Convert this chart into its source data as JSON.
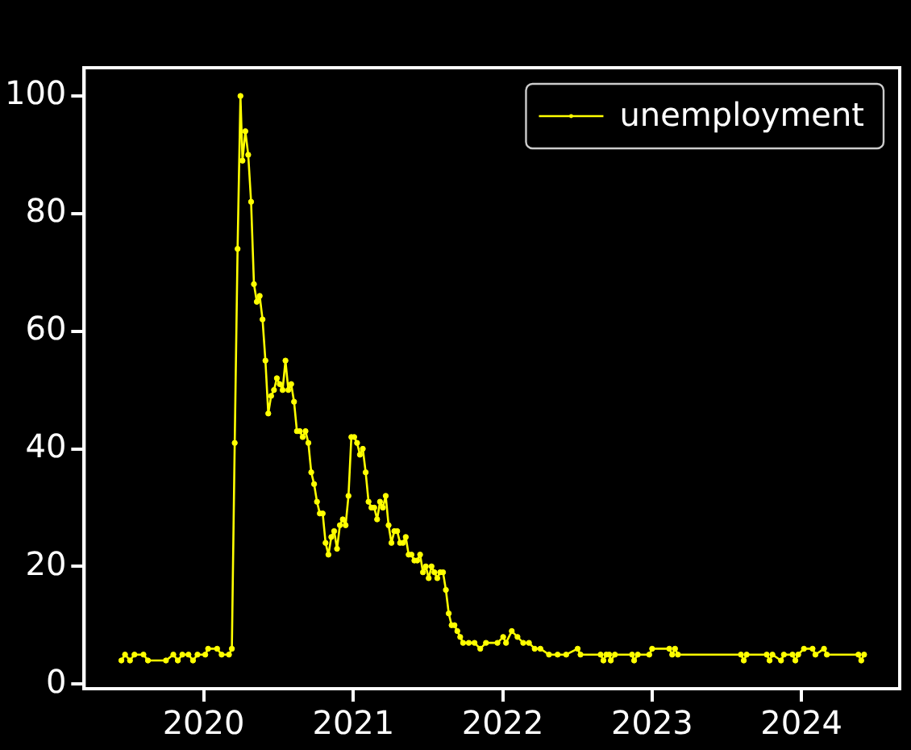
{
  "chart_data": {
    "type": "line",
    "legend": "top right",
    "marker": "circle",
    "line_style": "solid",
    "grid": false,
    "xlim": [
      "2019-03-15",
      "2024-08-28"
    ],
    "xticks": [
      "2020",
      "2021",
      "2022",
      "2023",
      "2024"
    ],
    "ylim": [
      -0.8,
      104.8
    ],
    "yticks": [
      0,
      20,
      40,
      60,
      80,
      100
    ],
    "x": [
      "2019-06-14",
      "2019-06-23",
      "2019-07-05",
      "2019-07-16",
      "2019-08-07",
      "2019-08-18",
      "2019-10-01",
      "2019-10-19",
      "2019-10-30",
      "2019-11-10",
      "2019-11-25",
      "2019-12-06",
      "2019-12-17",
      "2020-01-05",
      "2020-01-12",
      "2020-02-03",
      "2020-02-14",
      "2020-03-03",
      "2020-03-10",
      "2020-03-17",
      "2020-03-24",
      "2020-03-31",
      "2020-04-05",
      "2020-04-12",
      "2020-04-19",
      "2020-04-26",
      "2020-05-03",
      "2020-05-10",
      "2020-05-17",
      "2020-05-24",
      "2020-05-31",
      "2020-06-07",
      "2020-06-14",
      "2020-06-21",
      "2020-06-28",
      "2020-07-05",
      "2020-07-12",
      "2020-07-19",
      "2020-07-26",
      "2020-08-02",
      "2020-08-09",
      "2020-08-16",
      "2020-08-23",
      "2020-08-30",
      "2020-09-06",
      "2020-09-13",
      "2020-09-20",
      "2020-09-27",
      "2020-10-04",
      "2020-10-11",
      "2020-10-18",
      "2020-10-25",
      "2020-11-01",
      "2020-11-08",
      "2020-11-15",
      "2020-11-22",
      "2020-11-29",
      "2020-12-06",
      "2020-12-13",
      "2020-12-20",
      "2020-12-27",
      "2021-01-03",
      "2021-01-10",
      "2021-01-17",
      "2021-01-24",
      "2021-01-31",
      "2021-02-07",
      "2021-02-14",
      "2021-02-21",
      "2021-02-28",
      "2021-03-07",
      "2021-03-14",
      "2021-03-21",
      "2021-03-28",
      "2021-04-04",
      "2021-04-11",
      "2021-04-18",
      "2021-04-25",
      "2021-05-02",
      "2021-05-09",
      "2021-05-16",
      "2021-05-23",
      "2021-05-30",
      "2021-06-06",
      "2021-06-13",
      "2021-06-20",
      "2021-06-27",
      "2021-07-04",
      "2021-07-11",
      "2021-07-18",
      "2021-07-25",
      "2021-08-01",
      "2021-08-08",
      "2021-08-15",
      "2021-08-22",
      "2021-08-29",
      "2021-09-05",
      "2021-09-12",
      "2021-09-19",
      "2021-09-26",
      "2021-10-10",
      "2021-10-24",
      "2021-11-07",
      "2021-11-21",
      "2021-12-19",
      "2022-01-02",
      "2022-01-09",
      "2022-01-23",
      "2022-02-06",
      "2022-02-20",
      "2022-03-06",
      "2022-03-20",
      "2022-04-03",
      "2022-04-24",
      "2022-05-15",
      "2022-06-05",
      "2022-07-03",
      "2022-07-10",
      "2022-08-28",
      "2022-09-04",
      "2022-09-11",
      "2022-09-18",
      "2022-09-22",
      "2022-10-02",
      "2022-11-13",
      "2022-11-18",
      "2022-11-27",
      "2022-12-25",
      "2023-01-01",
      "2023-02-12",
      "2023-02-19",
      "2023-02-26",
      "2023-03-05",
      "2023-08-06",
      "2023-08-13",
      "2023-08-20",
      "2023-10-08",
      "2023-10-15",
      "2023-10-22",
      "2023-11-12",
      "2023-11-19",
      "2023-12-10",
      "2023-12-17",
      "2023-12-24",
      "2024-01-07",
      "2024-01-28",
      "2024-02-04",
      "2024-02-25",
      "2024-03-03",
      "2024-05-19",
      "2024-05-26",
      "2024-06-02"
    ],
    "series": [
      {
        "name": "unemployment",
        "color": "#ffff00",
        "values": [
          4,
          5,
          4,
          5,
          5,
          4,
          4,
          5,
          4,
          5,
          5,
          4,
          5,
          5,
          6,
          6,
          5,
          5,
          6,
          41,
          74,
          100,
          89,
          94,
          90,
          82,
          68,
          65,
          66,
          62,
          55,
          46,
          49,
          50,
          52,
          51,
          50,
          55,
          50,
          51,
          48,
          43,
          43,
          42,
          43,
          41,
          36,
          34,
          31,
          29,
          29,
          24,
          22,
          25,
          26,
          23,
          27,
          28,
          27,
          32,
          42,
          42,
          41,
          39,
          40,
          36,
          31,
          30,
          30,
          28,
          31,
          30,
          32,
          27,
          24,
          26,
          26,
          24,
          24,
          25,
          22,
          22,
          21,
          21,
          22,
          19,
          20,
          18,
          20,
          19,
          18,
          19,
          19,
          16,
          12,
          10,
          10,
          9,
          8,
          7,
          7,
          7,
          6,
          7,
          7,
          8,
          7,
          9,
          8,
          7,
          7,
          6,
          6,
          5,
          5,
          5,
          6,
          5,
          5,
          4,
          5,
          5,
          4,
          5,
          5,
          4,
          5,
          5,
          6,
          6,
          5,
          6,
          5,
          5,
          4,
          5,
          5,
          4,
          5,
          4,
          5,
          5,
          4,
          5,
          6,
          6,
          5,
          6,
          5,
          5,
          4,
          5
        ]
      }
    ]
  }
}
